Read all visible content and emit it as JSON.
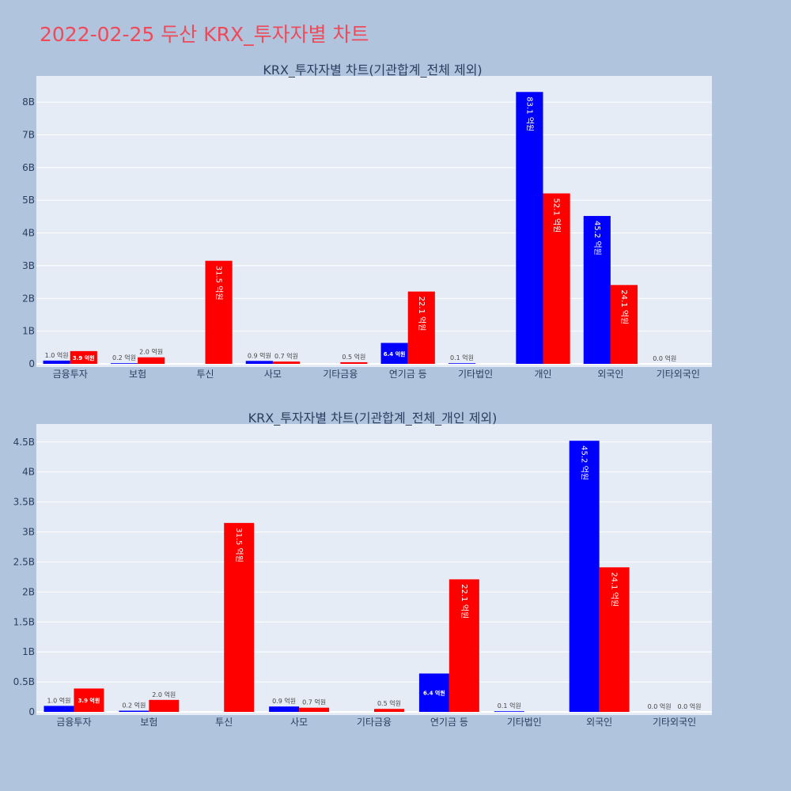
{
  "page_title": "2022-02-25 두산 KRX_투자자별 차트",
  "colors": {
    "buy": "#0000ff",
    "sell": "#ff0000",
    "plot_bg": "#e5ecf6",
    "grid": "#ffffff",
    "page_bg": "#b0c4de",
    "title": "#ef4a5a"
  },
  "chart_data": [
    {
      "type": "bar",
      "title": "KRX_투자자별 차트(기관합계_전체 제외)",
      "categories": [
        "금융투자",
        "보험",
        "투신",
        "사모",
        "기타금융",
        "연기금 등",
        "기타법인",
        "개인",
        "외국인",
        "기타외국인"
      ],
      "series": [
        {
          "values": [
            0.1,
            0.02,
            null,
            0.09,
            null,
            0.64,
            0.01,
            8.31,
            4.52,
            0.0
          ],
          "labels": [
            "1.0 억원",
            "0.2 억원",
            "",
            "0.9 억원",
            "",
            "6.4 억원",
            "0.1 억원",
            "83.1 억원",
            "45.2 억원",
            "0.0 억원"
          ]
        },
        {
          "values": [
            0.39,
            0.2,
            3.15,
            0.07,
            0.05,
            2.21,
            null,
            5.21,
            2.41,
            null
          ],
          "labels": [
            "3.9 억원",
            "2.0 억원",
            "31.5 억원",
            "0.7 억원",
            "0.5 억원",
            "22.1 억원",
            "",
            "52.1 억원",
            "24.1 억원",
            ""
          ]
        }
      ],
      "yticks": [
        "0",
        "1B",
        "2B",
        "3B",
        "4B",
        "5B",
        "6B",
        "7B",
        "8B"
      ],
      "ylim": [
        0,
        8.8
      ],
      "grid": true
    },
    {
      "type": "bar",
      "title": "KRX_투자자별 차트(기관합계_전체_개인 제외)",
      "categories": [
        "금융투자",
        "보험",
        "투신",
        "사모",
        "기타금융",
        "연기금 등",
        "기타법인",
        "외국인",
        "기타외국인"
      ],
      "series": [
        {
          "values": [
            0.1,
            0.02,
            null,
            0.09,
            null,
            0.64,
            0.01,
            4.52,
            0.0
          ],
          "labels": [
            "1.0 억원",
            "0.2 억원",
            "",
            "0.9 억원",
            "",
            "6.4 억원",
            "0.1 억원",
            "45.2 억원",
            "0.0 억원"
          ]
        },
        {
          "values": [
            0.39,
            0.2,
            3.15,
            0.07,
            0.05,
            2.21,
            null,
            2.41,
            0.0
          ],
          "labels": [
            "3.9 억원",
            "2.0 억원",
            "31.5 억원",
            "0.7 억원",
            "0.5 억원",
            "22.1 억원",
            "",
            "24.1 억원",
            "0.0 억원"
          ]
        }
      ],
      "yticks": [
        "0",
        "0.5B",
        "1B",
        "1.5B",
        "2B",
        "2.5B",
        "3B",
        "3.5B",
        "4B",
        "4.5B"
      ],
      "ylim": [
        0,
        4.8
      ],
      "grid": true
    }
  ]
}
